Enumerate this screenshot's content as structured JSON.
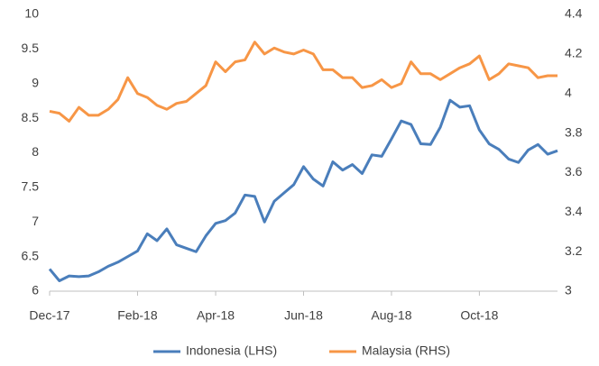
{
  "chart_data": {
    "type": "line",
    "categories": [
      "Dec-17",
      null,
      null,
      null,
      null,
      null,
      null,
      null,
      null,
      "Feb-18",
      null,
      null,
      null,
      null,
      null,
      null,
      null,
      "Apr-18",
      null,
      null,
      null,
      null,
      null,
      null,
      null,
      null,
      "Jun-18",
      null,
      null,
      null,
      null,
      null,
      null,
      null,
      null,
      "Aug-18",
      null,
      null,
      null,
      null,
      null,
      null,
      null,
      null,
      "Oct-18",
      null,
      null,
      null,
      null,
      null,
      null,
      null,
      null
    ],
    "series": [
      {
        "name": "Indonesia (LHS)",
        "color": "#4a7ebb",
        "axis": "y",
        "values": [
          6.32,
          6.15,
          6.22,
          6.21,
          6.22,
          6.28,
          6.36,
          6.42,
          6.5,
          6.58,
          6.83,
          6.73,
          6.9,
          6.67,
          6.62,
          6.57,
          6.8,
          6.98,
          7.02,
          7.13,
          7.39,
          7.37,
          7.0,
          7.3,
          7.42,
          7.54,
          7.8,
          7.62,
          7.52,
          7.87,
          7.75,
          7.83,
          7.7,
          7.97,
          7.95,
          8.2,
          8.46,
          8.41,
          8.13,
          8.12,
          8.37,
          8.76,
          8.66,
          8.68,
          8.33,
          8.13,
          8.05,
          7.91,
          7.86,
          8.04,
          8.12,
          7.98,
          8.03
        ]
      },
      {
        "name": "Malaysia (RHS)",
        "color": "#f79646",
        "axis": "y2",
        "values": [
          3.91,
          3.9,
          3.86,
          3.93,
          3.89,
          3.89,
          3.92,
          3.97,
          4.08,
          4.0,
          3.98,
          3.94,
          3.92,
          3.95,
          3.96,
          4.0,
          4.04,
          4.16,
          4.11,
          4.16,
          4.17,
          4.26,
          4.2,
          4.23,
          4.21,
          4.2,
          4.22,
          4.2,
          4.12,
          4.12,
          4.08,
          4.08,
          4.03,
          4.04,
          4.07,
          4.03,
          4.05,
          4.16,
          4.1,
          4.1,
          4.07,
          4.1,
          4.13,
          4.15,
          4.19,
          4.07,
          4.1,
          4.15,
          4.14,
          4.13,
          4.08,
          4.09,
          4.09
        ]
      }
    ],
    "ylim": [
      6,
      10
    ],
    "yticks": [
      6,
      6.5,
      7,
      7.5,
      8,
      8.5,
      9,
      9.5,
      10
    ],
    "y2lim": [
      3,
      4.4
    ],
    "y2ticks": [
      3,
      3.2,
      3.4,
      3.6,
      3.8,
      4,
      4.2,
      4.4
    ],
    "grid": false,
    "legend": "bottom"
  }
}
